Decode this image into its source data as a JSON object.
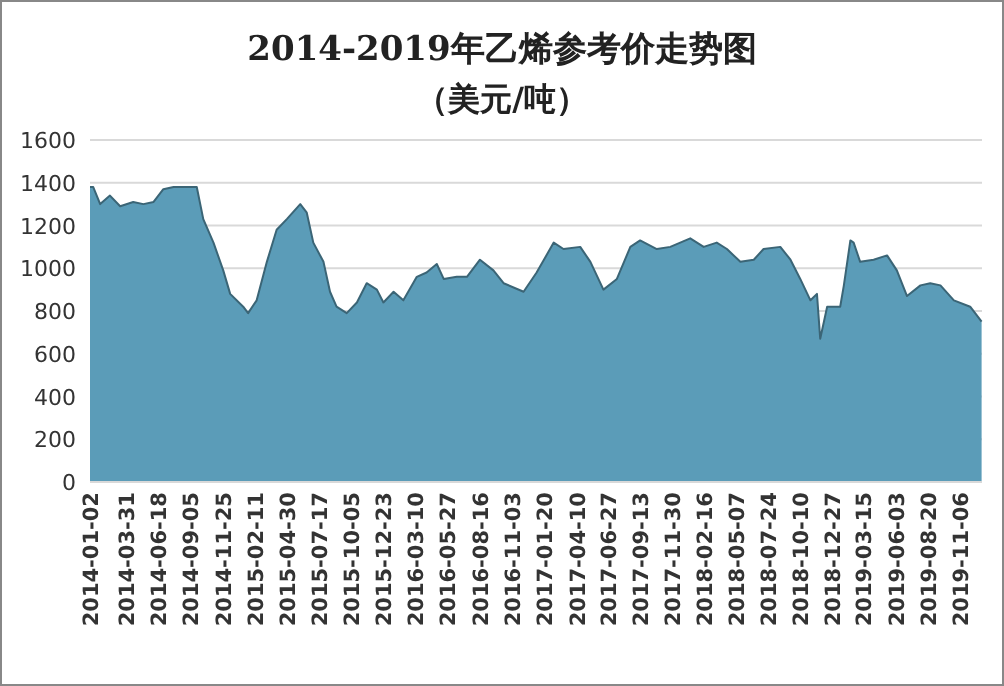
{
  "chart_data": {
    "type": "area",
    "title": "2014-2019年乙烯参考价走势图",
    "subtitle": "（美元/吨）",
    "x": [
      "2014-01-02",
      "2014-01-10",
      "2014-01-27",
      "2014-02-20",
      "2014-03-17",
      "2014-04-18",
      "2014-05-13",
      "2014-06-07",
      "2014-07-01",
      "2014-07-26",
      "2014-08-27",
      "2014-09-21",
      "2014-10-07",
      "2014-11-01",
      "2014-11-25",
      "2014-12-12",
      "2015-01-13",
      "2015-01-25",
      "2015-02-15",
      "2015-03-12",
      "2015-04-05",
      "2015-04-30",
      "2015-06-02",
      "2015-06-18",
      "2015-07-04",
      "2015-07-29",
      "2015-08-14",
      "2015-08-30",
      "2015-09-24",
      "2015-10-19",
      "2015-11-12",
      "2015-12-07",
      "2015-12-23",
      "2016-01-17",
      "2016-02-10",
      "2016-03-14",
      "2016-04-07",
      "2016-05-02",
      "2016-05-19",
      "2016-06-20",
      "2016-07-15",
      "2016-08-16",
      "2016-09-18",
      "2016-10-13",
      "2016-12-01",
      "2017-01-02",
      "2017-02-13",
      "2017-03-09",
      "2017-04-19",
      "2017-05-14",
      "2017-06-15",
      "2017-07-18",
      "2017-08-20",
      "2017-09-13",
      "2017-10-24",
      "2017-11-26",
      "2018-01-14",
      "2018-02-16",
      "2018-03-20",
      "2018-04-14",
      "2018-05-17",
      "2018-06-19",
      "2018-07-13",
      "2018-08-23",
      "2018-09-17",
      "2018-10-11",
      "2018-11-05",
      "2018-11-21",
      "2018-11-29",
      "2018-12-16",
      "2019-01-17",
      "2019-01-26",
      "2019-02-11",
      "2019-02-19",
      "2019-03-07",
      "2019-04-09",
      "2019-05-12",
      "2019-06-05",
      "2019-06-30",
      "2019-08-02",
      "2019-08-26",
      "2019-09-20",
      "2019-10-23",
      "2019-12-02",
      "2019-12-30"
    ],
    "series": [
      {
        "color": "#5b9cb8",
        "values": [
          1380,
          1380,
          1300,
          1340,
          1290,
          1310,
          1300,
          1310,
          1370,
          1380,
          1380,
          1380,
          1230,
          1120,
          990,
          880,
          820,
          790,
          850,
          1030,
          1180,
          1230,
          1300,
          1260,
          1120,
          1030,
          890,
          820,
          790,
          840,
          930,
          900,
          840,
          890,
          850,
          960,
          980,
          1020,
          950,
          960,
          960,
          1040,
          990,
          930,
          890,
          980,
          1120,
          1090,
          1100,
          1030,
          900,
          950,
          1100,
          1130,
          1090,
          1100,
          1140,
          1100,
          1120,
          1090,
          1030,
          1040,
          1090,
          1100,
          1040,
          950,
          850,
          880,
          670,
          820,
          820,
          920,
          1130,
          1120,
          1030,
          1040,
          1060,
          990,
          870,
          920,
          930,
          920,
          850,
          820,
          750
        ]
      }
    ],
    "xlim": [
      "2014-01-02",
      "2019-12-31"
    ],
    "xticks": [
      "2014-01-02",
      "2014-03-31",
      "2014-06-18",
      "2014-09-05",
      "2014-11-25",
      "2015-02-11",
      "2015-04-30",
      "2015-07-17",
      "2015-10-05",
      "2015-12-23",
      "2016-03-10",
      "2016-05-27",
      "2016-08-16",
      "2016-11-03",
      "2017-01-20",
      "2017-04-10",
      "2017-06-27",
      "2017-09-13",
      "2017-11-30",
      "2018-02-16",
      "2018-05-07",
      "2018-07-24",
      "2018-10-10",
      "2018-12-27",
      "2019-03-15",
      "2019-06-03",
      "2019-08-20",
      "2019-11-06"
    ],
    "ylim": [
      0,
      1600
    ],
    "yticks": [
      0,
      200,
      400,
      600,
      800,
      1000,
      1200,
      1400,
      1600
    ],
    "grid": "y"
  }
}
